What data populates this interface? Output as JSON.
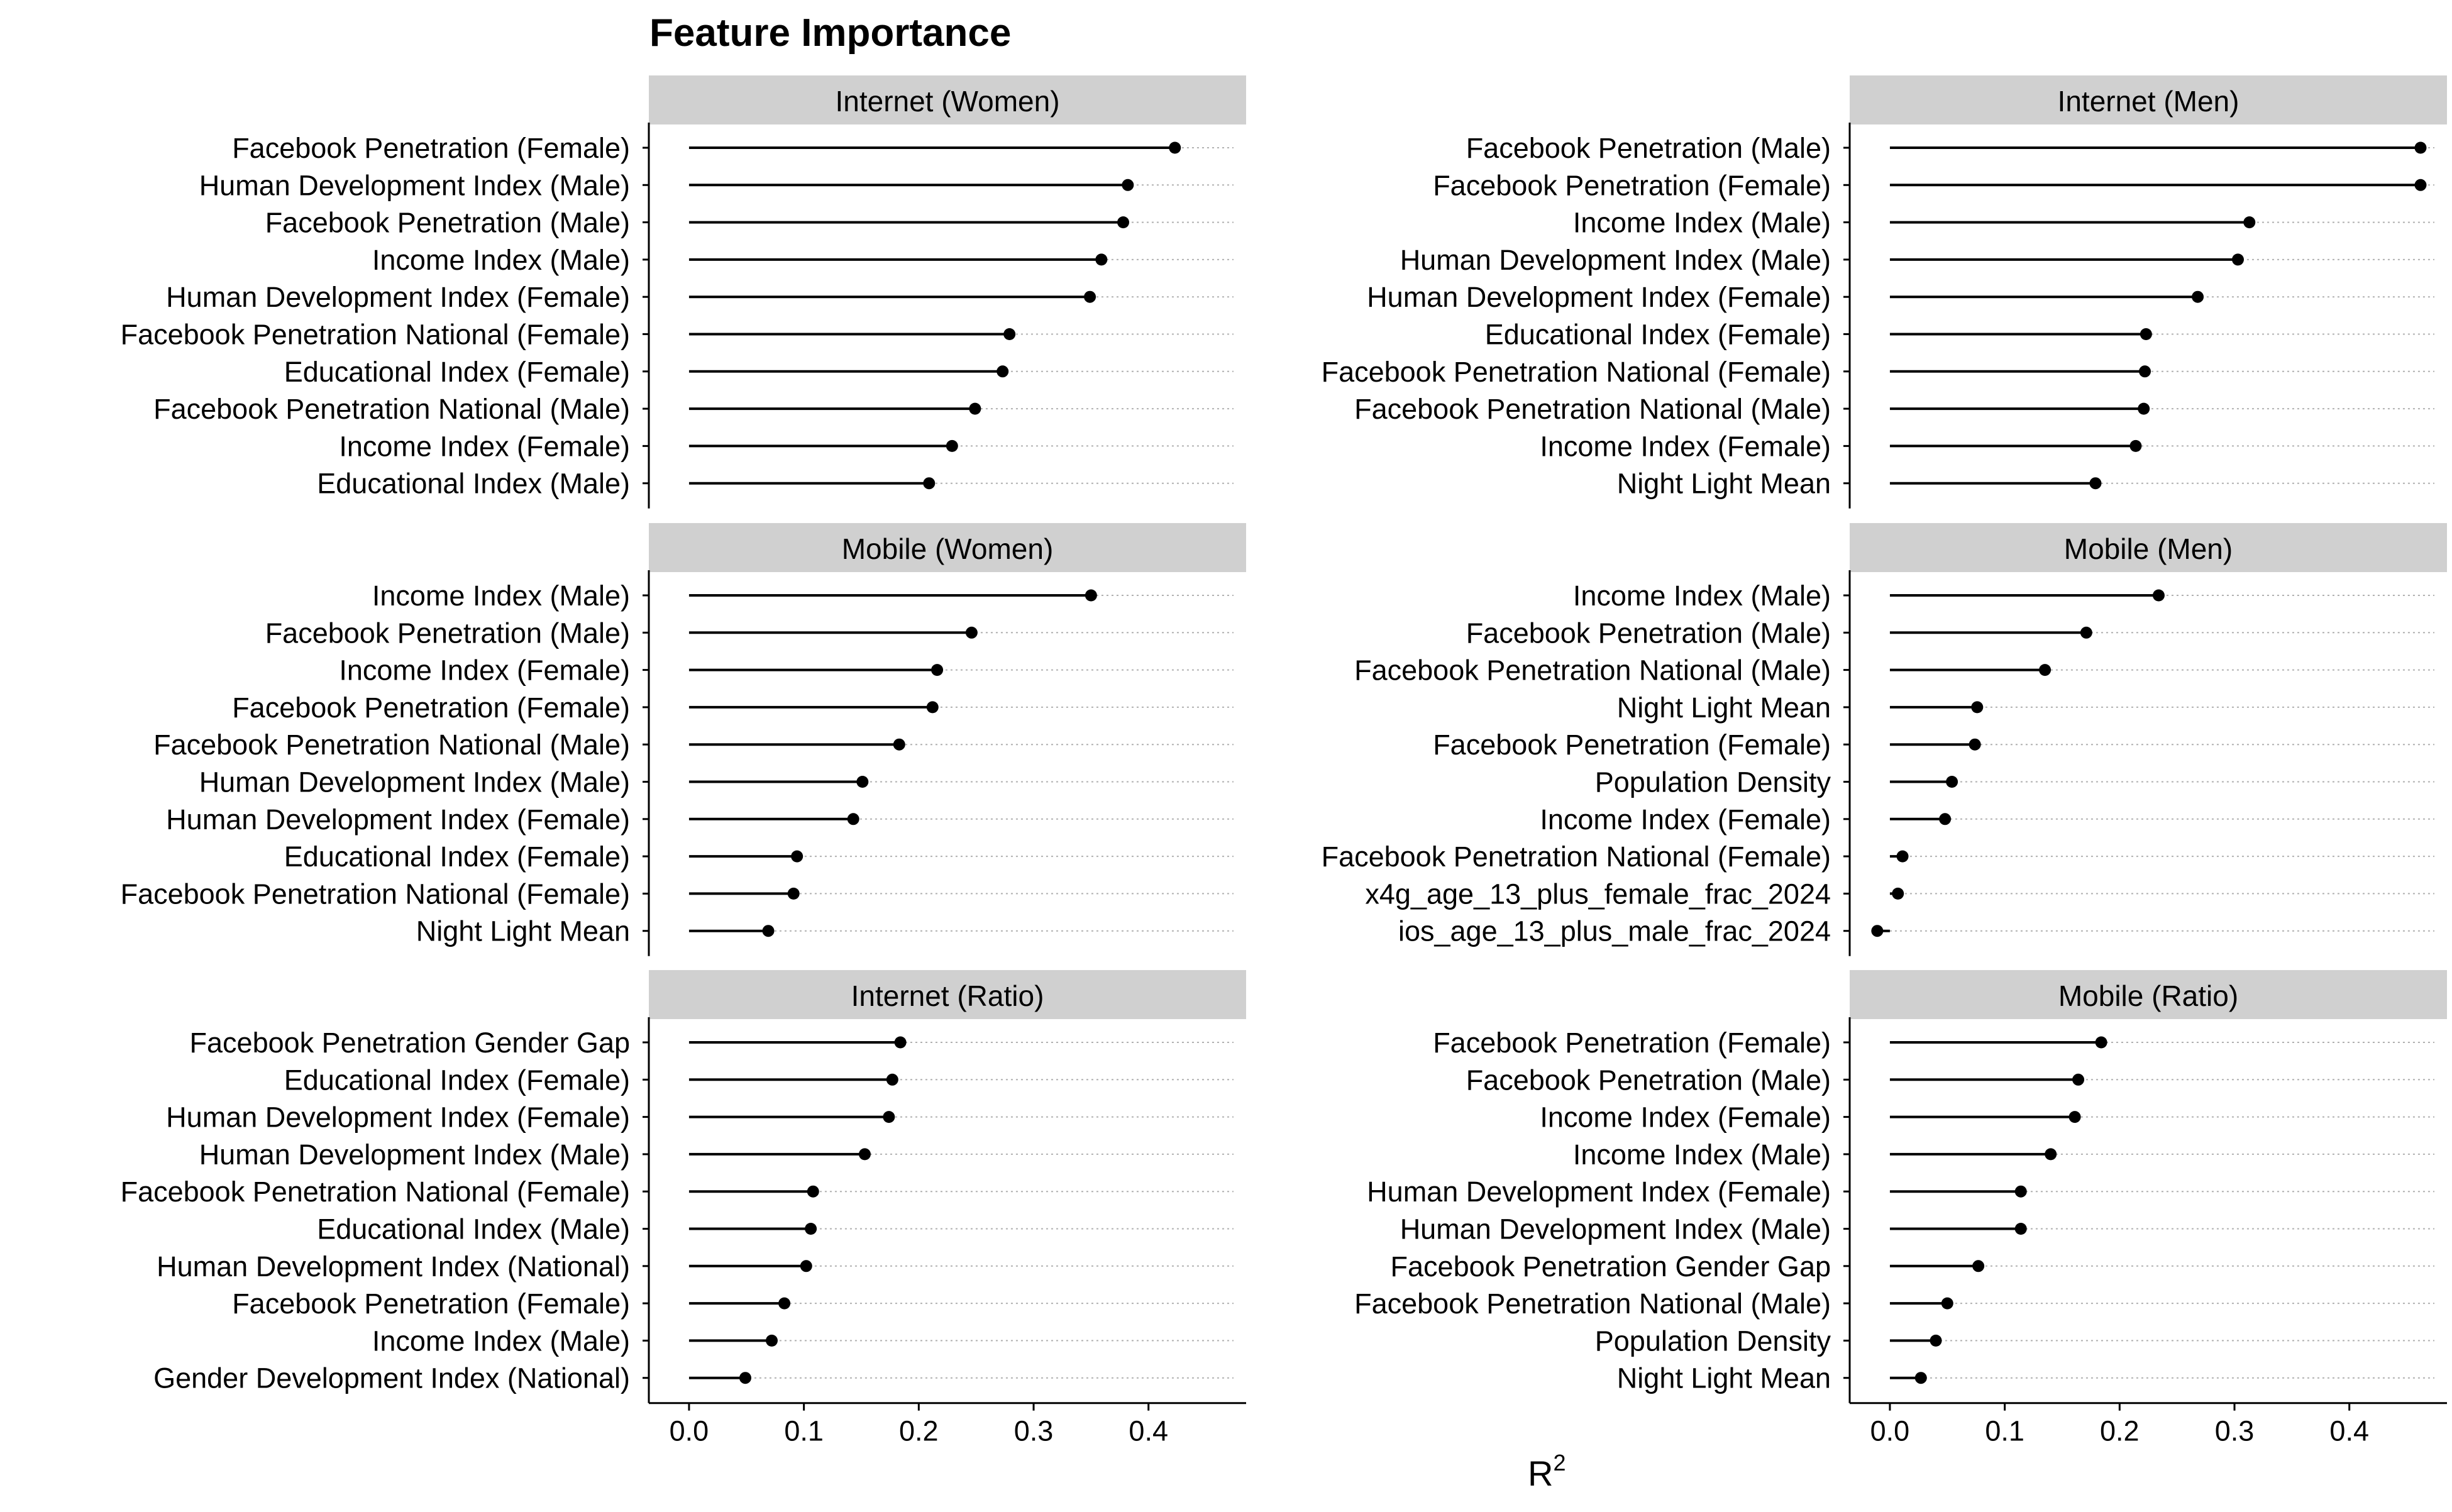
{
  "chart_data": {
    "type": "lollipop",
    "title": "Feature Importance",
    "xlabel": "R",
    "xlabel_superscript": "2",
    "xlim": [
      -0.035,
      0.485
    ],
    "xticks": [
      0.0,
      0.1,
      0.2,
      0.3,
      0.4
    ],
    "xtick_labels": [
      "0.0",
      "0.1",
      "0.2",
      "0.3",
      "0.4"
    ],
    "grid": "dotted horizontal guide per feature",
    "layout": "3 rows x 2 columns, facet strips on top",
    "colors": {
      "marker": "#000000",
      "strip": "#d0d0d0",
      "gridline": "#b0b0b0"
    },
    "panels": [
      {
        "title": "Internet (Women)",
        "features": [
          "Facebook Penetration (Female)",
          "Human Development Index (Male)",
          "Facebook Penetration (Male)",
          "Income Index (Male)",
          "Human Development Index (Female)",
          "Facebook Penetration National (Female)",
          "Educational Index (Female)",
          "Facebook Penetration National (Male)",
          "Income Index (Female)",
          "Educational Index (Male)"
        ],
        "values": [
          0.423,
          0.382,
          0.378,
          0.359,
          0.349,
          0.279,
          0.273,
          0.249,
          0.229,
          0.209
        ]
      },
      {
        "title": "Internet (Men)",
        "features": [
          "Facebook Penetration (Male)",
          "Facebook Penetration (Female)",
          "Income Index (Male)",
          "Human Development Index (Male)",
          "Human Development Index (Female)",
          "Educational Index (Female)",
          "Facebook Penetration National (Female)",
          "Facebook Penetration National (Male)",
          "Income Index (Female)",
          "Night Light Mean"
        ],
        "values": [
          0.462,
          0.462,
          0.313,
          0.303,
          0.268,
          0.223,
          0.222,
          0.221,
          0.214,
          0.179
        ]
      },
      {
        "title": "Mobile (Women)",
        "features": [
          "Income Index (Male)",
          "Facebook Penetration (Male)",
          "Income Index (Female)",
          "Facebook Penetration (Female)",
          "Facebook Penetration National (Male)",
          "Human Development Index (Male)",
          "Human Development Index (Female)",
          "Educational Index (Female)",
          "Facebook Penetration National (Female)",
          "Night Light Mean"
        ],
        "values": [
          0.35,
          0.246,
          0.216,
          0.212,
          0.183,
          0.151,
          0.143,
          0.094,
          0.091,
          0.069
        ]
      },
      {
        "title": "Mobile (Men)",
        "features": [
          "Income Index (Male)",
          "Facebook Penetration (Male)",
          "Facebook Penetration National (Male)",
          "Night Light Mean",
          "Facebook Penetration (Female)",
          "Population Density",
          "Income Index (Female)",
          "Facebook Penetration National (Female)",
          "x4g_age_13_plus_female_frac_2024",
          "ios_age_13_plus_male_frac_2024"
        ],
        "values": [
          0.234,
          0.171,
          0.135,
          0.076,
          0.074,
          0.054,
          0.048,
          0.011,
          0.007,
          -0.011
        ]
      },
      {
        "title": "Internet (Ratio)",
        "features": [
          "Facebook Penetration Gender Gap",
          "Educational Index (Female)",
          "Human Development Index (Female)",
          "Human Development Index (Male)",
          "Facebook Penetration National (Female)",
          "Educational Index (Male)",
          "Human Development Index (National)",
          "Facebook Penetration (Female)",
          "Income Index (Male)",
          "Gender Development Index (National)"
        ],
        "values": [
          0.184,
          0.177,
          0.174,
          0.153,
          0.108,
          0.106,
          0.102,
          0.083,
          0.072,
          0.049
        ]
      },
      {
        "title": "Mobile (Ratio)",
        "features": [
          "Facebook Penetration (Female)",
          "Facebook Penetration (Male)",
          "Income Index (Female)",
          "Income Index (Male)",
          "Human Development Index (Female)",
          "Human Development Index (Male)",
          "Facebook Penetration Gender Gap",
          "Facebook Penetration National (Male)",
          "Population Density",
          "Night Light Mean"
        ],
        "values": [
          0.184,
          0.164,
          0.161,
          0.14,
          0.114,
          0.114,
          0.077,
          0.05,
          0.04,
          0.027
        ]
      }
    ]
  }
}
